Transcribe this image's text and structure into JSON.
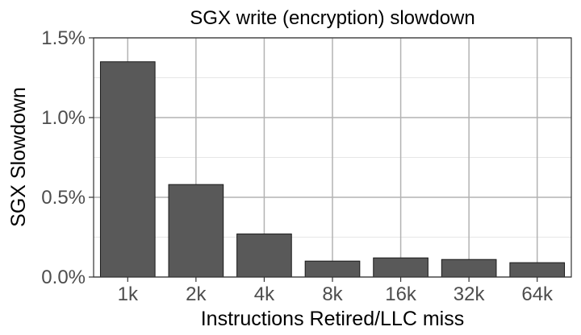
{
  "chart_data": {
    "type": "bar",
    "title": "SGX write (encryption) slowdown",
    "xlabel": "Instructions Retired/LLC miss",
    "ylabel": "SGX Slowdown",
    "categories": [
      "1k",
      "2k",
      "4k",
      "8k",
      "16k",
      "32k",
      "64k"
    ],
    "values": [
      1.35,
      0.58,
      0.27,
      0.1,
      0.12,
      0.11,
      0.09
    ],
    "value_unit": "%",
    "ylim": [
      0,
      1.5
    ],
    "yticks": [
      0,
      0.5,
      1.0,
      1.5
    ],
    "ytick_labels": [
      "0.0%",
      "0.5%",
      "1.0%",
      "1.5%"
    ],
    "grid": true,
    "legend": "none",
    "colors": {
      "bar_fill": "#595959",
      "bar_stroke": "#1a1a1a",
      "grid_major": "#b3b3b3",
      "grid_minor": "#e6e6e6",
      "panel_border": "#333333"
    }
  }
}
